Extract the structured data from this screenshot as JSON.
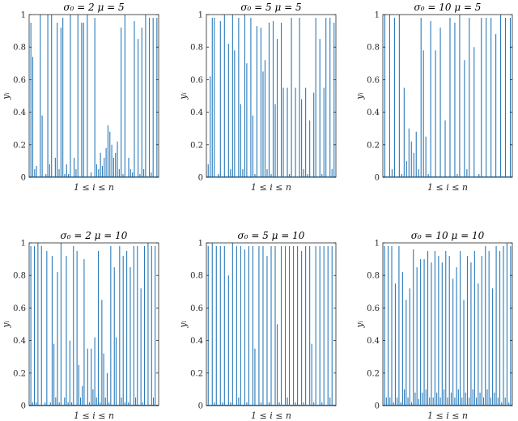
{
  "figure": {
    "line_color": "#2a7ab9"
  },
  "chart_data": [
    {
      "type": "bar",
      "title": "σ₀ = 2    μ = 5",
      "xlabel": "1 ≤ i ≤ n",
      "ylabel": "yᵢ",
      "ylim": [
        0,
        1
      ],
      "yticks": [
        "0",
        "0.2",
        "0.4",
        "0.6",
        "0.8",
        "1"
      ],
      "values": [
        0.95,
        0.74,
        0.05,
        0.07,
        0,
        1,
        0.38,
        0,
        0.02,
        1,
        0.08,
        1,
        0,
        0.12,
        0.95,
        0.05,
        0.92,
        0.98,
        0.02,
        0.08,
        0.02,
        1,
        0,
        0.12,
        0.05,
        1,
        0,
        0.95,
        0.95,
        0,
        1,
        0,
        0.03,
        0,
        0.98,
        0.08,
        0.05,
        0.15,
        0.07,
        0.12,
        0.18,
        0.32,
        0.28,
        0.2,
        0.12,
        0.15,
        0.22,
        0.05,
        0.92,
        0.02,
        1,
        0,
        0.12,
        0.05,
        0.03,
        0.96,
        0,
        0.85,
        0.02,
        0.92,
        0.05,
        1,
        0,
        0.98,
        0.03,
        0.98,
        0,
        0.98
      ]
    },
    {
      "type": "bar",
      "title": "σ₀ = 5    μ = 5",
      "xlabel": "1 ≤ i ≤ n",
      "ylabel": "yᵢ",
      "ylim": [
        0,
        1
      ],
      "yticks": [
        "0",
        "0.2",
        "0.4",
        "0.6",
        "0.8",
        "1"
      ],
      "values": [
        0.08,
        0.62,
        0.98,
        0.98,
        0,
        0.02,
        0.96,
        0,
        1,
        0,
        0.82,
        0.05,
        1,
        0.78,
        0,
        0.98,
        0.45,
        0.05,
        1,
        0.7,
        0,
        0.98,
        0.38,
        0.02,
        0.93,
        0,
        0.92,
        0.65,
        0.72,
        0.05,
        0.95,
        0.02,
        0.96,
        0.45,
        0.85,
        0,
        0.95,
        0.55,
        0,
        0.55,
        0.02,
        0.98,
        0,
        0.55,
        0,
        0.98,
        0.48,
        0.05,
        0.55,
        0.02,
        0.35,
        0,
        0.52,
        0.98,
        0,
        0.85,
        0.02,
        0.55,
        0.98,
        0,
        0.98,
        0.05,
        0.95
      ]
    },
    {
      "type": "bar",
      "title": "σ₀ = 10    μ = 5",
      "xlabel": "1 ≤ i ≤ n",
      "ylabel": "yᵢ",
      "ylim": [
        0,
        1
      ],
      "yticks": [
        "0",
        "0.2",
        "0.4",
        "0.6",
        "0.8",
        "1"
      ],
      "values": [
        1,
        0,
        1,
        0.05,
        0.98,
        0,
        1,
        0.02,
        0.55,
        0.1,
        0.3,
        0.22,
        0.15,
        0.28,
        0.05,
        0.98,
        0.78,
        0.25,
        0.02,
        0.96,
        0,
        0.78,
        0,
        0.92,
        0,
        0.35,
        0,
        0.98,
        0,
        0.95,
        0.02,
        1,
        0,
        0.72,
        0.05,
        0.98,
        0,
        0.8,
        0,
        0.02,
        0.98,
        0,
        0.98,
        0,
        0.98,
        0,
        0.88,
        0,
        1,
        0,
        0.98,
        0,
        0.98
      ]
    },
    {
      "type": "bar",
      "title": "σ₀ = 2    μ = 10",
      "xlabel": "1 ≤ i ≤ n",
      "ylabel": "yᵢ",
      "ylim": [
        0,
        1
      ],
      "yticks": [
        "0",
        "0.2",
        "0.4",
        "0.6",
        "0.8",
        "1"
      ],
      "values": [
        0.98,
        0.02,
        0.98,
        0.02,
        1,
        0,
        0.98,
        0,
        0.02,
        0.95,
        0,
        0.02,
        0.92,
        0.38,
        0.05,
        0.82,
        0.02,
        1,
        0,
        0.05,
        0.92,
        0.02,
        0.4,
        0.02,
        0.98,
        0,
        0.95,
        0.25,
        0.05,
        0.12,
        0.9,
        0,
        0.35,
        0.02,
        0.35,
        0.1,
        0.42,
        0.05,
        0.95,
        0.02,
        0.65,
        0.32,
        0.05,
        0.2,
        0.02,
        0.98,
        0,
        0.85,
        0.42,
        0,
        0.98,
        0.05,
        0.92,
        0.02,
        0.95,
        0.02,
        0.85,
        0,
        0.98,
        0.05,
        0.98,
        0,
        0.72,
        0.02,
        0.98,
        0,
        1,
        0,
        0.98,
        0.05,
        0.98,
        0
      ]
    },
    {
      "type": "bar",
      "title": "σ₀ = 5    μ = 10",
      "xlabel": "1 ≤ i ≤ n",
      "ylabel": "yᵢ",
      "ylim": [
        0,
        1
      ],
      "yticks": [
        "0",
        "0.2",
        "0.4",
        "0.6",
        "0.8",
        "1"
      ],
      "values": [
        0.98,
        0,
        1,
        0.02,
        0.98,
        0,
        0.98,
        0.02,
        0.98,
        0,
        0.8,
        0.02,
        1,
        0,
        0.98,
        0.05,
        0.98,
        0,
        0.96,
        0.02,
        0.98,
        0,
        0.98,
        0.35,
        0,
        0.98,
        0.02,
        0.98,
        0,
        0.92,
        0.02,
        0.98,
        0,
        0.98,
        0.5,
        0.02,
        0.98,
        0,
        0.98,
        0.05,
        0.98,
        0,
        0.98,
        0.02,
        0.98,
        0,
        0.95,
        0.02,
        0.98,
        0,
        0.98,
        0.38,
        0.02,
        0.98,
        0,
        0.98,
        0.02,
        0.98,
        0,
        0.98,
        0.05,
        0.98,
        0
      ]
    },
    {
      "type": "bar",
      "title": "σ₀ = 10    μ = 10",
      "xlabel": "1 ≤ i ≤ n",
      "ylabel": "yᵢ",
      "ylim": [
        0,
        1
      ],
      "yticks": [
        "0",
        "0.2",
        "0.4",
        "0.6",
        "0.8",
        "1"
      ],
      "values": [
        0.98,
        0.05,
        0.98,
        0.05,
        0.98,
        0.02,
        0.75,
        0.05,
        0.98,
        0.02,
        0.82,
        0.1,
        0.65,
        0.05,
        0.72,
        0.02,
        0.96,
        0.08,
        0.85,
        0.04,
        0.9,
        0.08,
        0.9,
        0.1,
        0.95,
        0.05,
        0.88,
        0.05,
        0.95,
        0.08,
        0.92,
        0.05,
        0.88,
        0.1,
        0.95,
        0.05,
        0.92,
        0.08,
        0.78,
        0.05,
        0.85,
        0.1,
        0.95,
        0.05,
        0.65,
        0.08,
        0.92,
        0.05,
        0.88,
        0.1,
        0.95,
        0.05,
        0.75,
        0.08,
        0.92,
        0.05,
        0.98,
        0.1,
        0.95,
        0.05,
        0.72,
        0.08,
        0.98,
        0.05,
        0.95,
        0.02,
        0.98,
        0.05,
        1,
        0.02,
        0.98
      ]
    }
  ]
}
